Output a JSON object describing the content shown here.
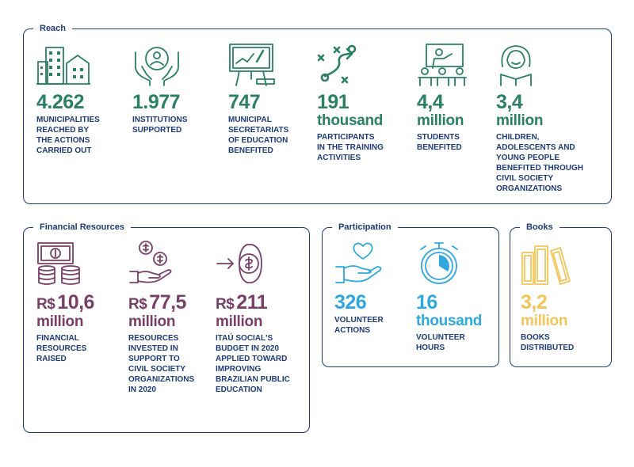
{
  "sections": {
    "reach": {
      "title": "Reach",
      "stats": [
        {
          "number": "4.262",
          "unit": "",
          "desc": "MUNICIPALITIES\nREACHED BY\nTHE ACTIONS\nCARRIED OUT",
          "icon": "city-buildings-icon"
        },
        {
          "number": "1.977",
          "unit": "",
          "desc": "INSTITUTIONS\nSUPPORTED",
          "icon": "hands-person-icon"
        },
        {
          "number": "747",
          "unit": "",
          "desc": "MUNICIPAL\nSECRETARIATS\nOF EDUCATION\nBENEFITED",
          "icon": "whiteboard-chart-icon"
        },
        {
          "number": "191",
          "unit": "thousand",
          "desc": "PARTICIPANTS\nIN THE TRAINING\nACTIVITIES",
          "icon": "strategy-play-icon"
        },
        {
          "number": "4,4",
          "unit": "million",
          "desc": "STUDENTS\nBENEFITED",
          "icon": "classroom-teacher-icon"
        },
        {
          "number": "3,4",
          "unit": "million",
          "desc": "CHILDREN,\nADOLESCENTS AND\nYOUNG PEOPLE\nBENEFITED THROUGH\nCIVIL SOCIETY\nORGANIZATIONS",
          "icon": "girl-reading-icon"
        }
      ]
    },
    "financial": {
      "title": "Financial Resources",
      "stats": [
        {
          "prefix": "R$",
          "number": "10,6",
          "unit": "million",
          "desc": "FINANCIAL\nRESOURCES\nRAISED",
          "icon": "money-coins-icon"
        },
        {
          "prefix": "R$",
          "number": "77,5",
          "unit": "million",
          "desc": "RESOURCES\nINVESTED IN\nSUPPORT TO\nCIVIL SOCIETY\nORGANIZATIONS\nIN 2020",
          "icon": "hand-coins-icon"
        },
        {
          "prefix": "R$",
          "number": "211",
          "unit": "million",
          "desc": "ITAÚ SOCIAL'S\nBUDGET IN 2020\nAPPLIED TOWARD\nIMPROVING\nBRAZILIAN PUBLIC\nEDUCATION",
          "icon": "arrow-coin-icon"
        }
      ]
    },
    "participation": {
      "title": "Participation",
      "stats": [
        {
          "number": "326",
          "unit": "",
          "desc": "VOLUNTEER\nACTIONS",
          "icon": "hand-heart-icon"
        },
        {
          "number": "16",
          "unit": "thousand",
          "desc": "VOLUNTEER\nHOURS",
          "icon": "stopwatch-icon"
        }
      ]
    },
    "books": {
      "title": "Books",
      "stats": [
        {
          "number": "3,2",
          "unit": "million",
          "desc": "BOOKS\nDISTRIBUTED",
          "icon": "books-icon"
        }
      ]
    }
  },
  "colors": {
    "frame": "#1e3a78",
    "reach": "#2a8060",
    "financial": "#7a3f67",
    "participation": "#2fa8df",
    "books": "#f3c55a"
  }
}
